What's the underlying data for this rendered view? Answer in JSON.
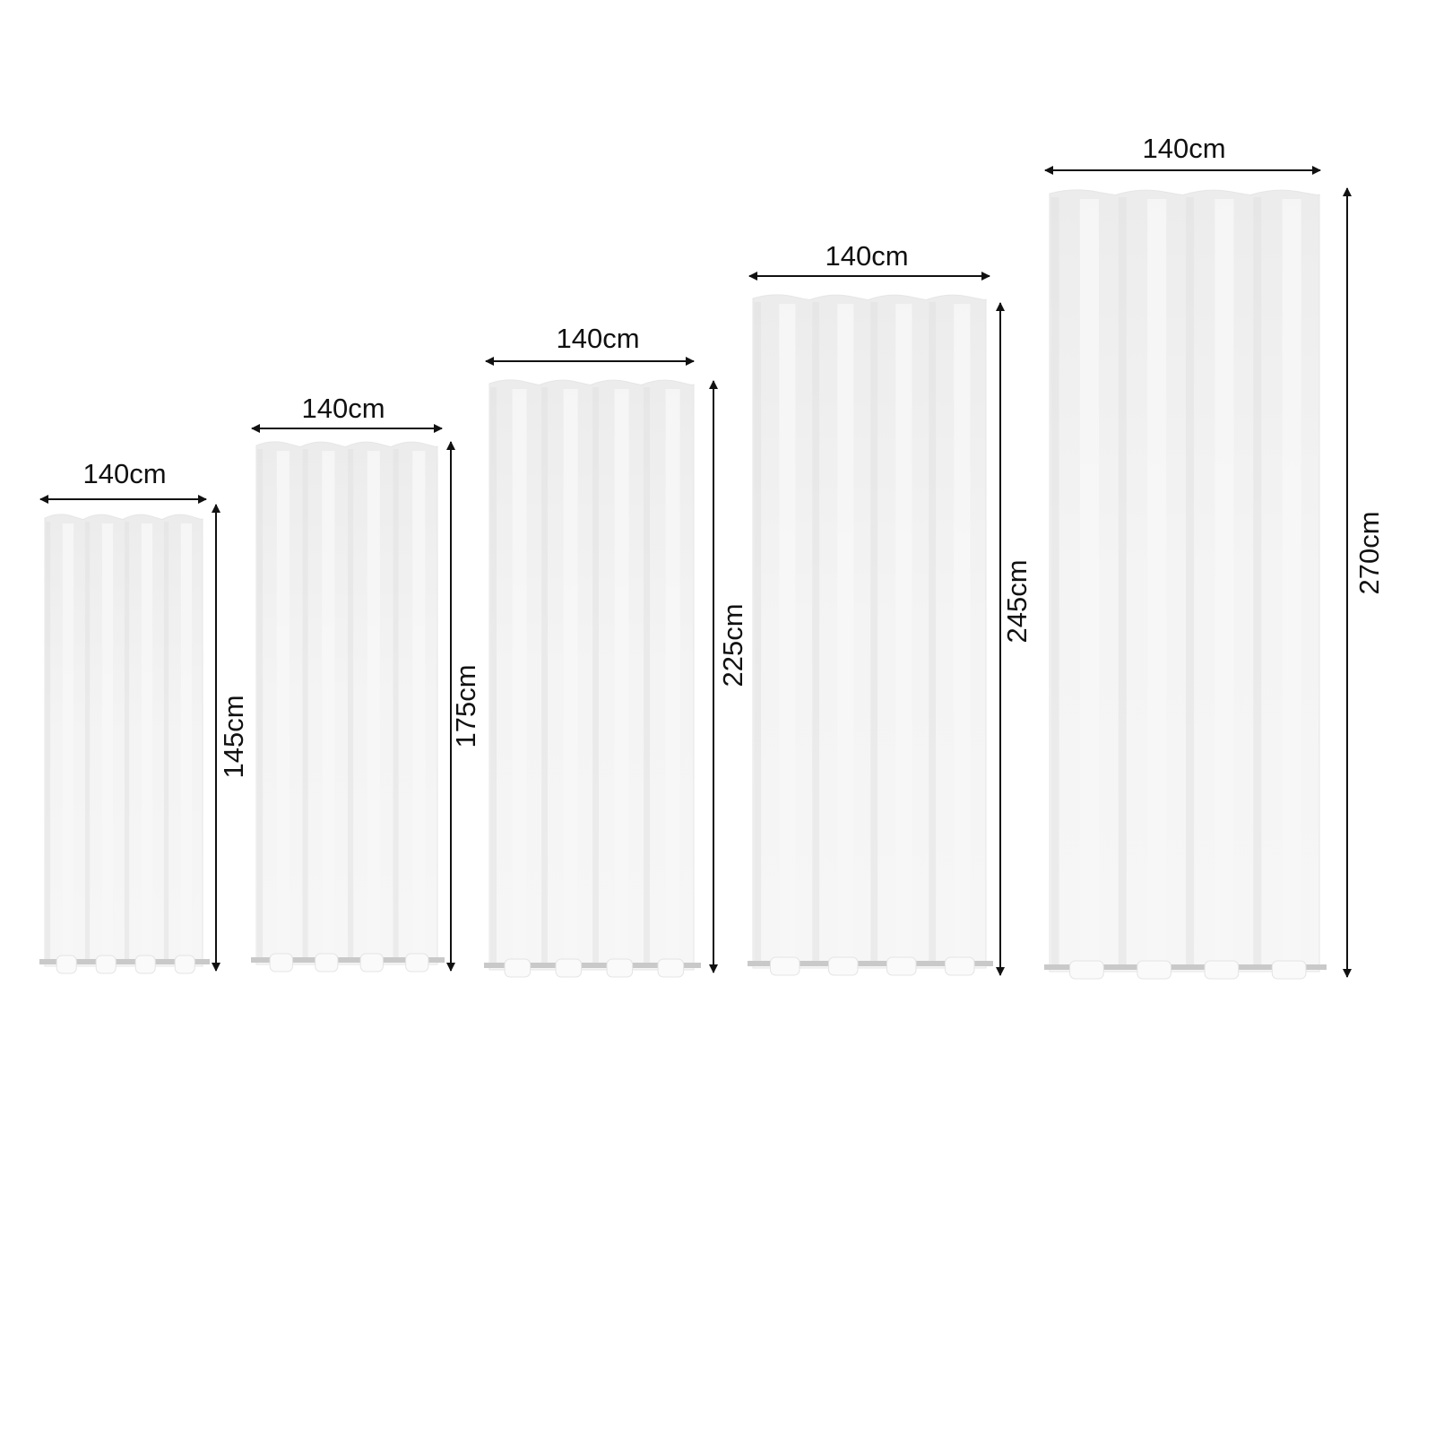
{
  "curtains": [
    {
      "width_label": "140cm",
      "height_label": "145cm",
      "height_cm": 145
    },
    {
      "width_label": "140cm",
      "height_label": "175cm",
      "height_cm": 175
    },
    {
      "width_label": "140cm",
      "height_label": "225cm",
      "height_cm": 225
    },
    {
      "width_label": "140cm",
      "height_label": "245cm",
      "height_cm": 245
    },
    {
      "width_label": "140cm",
      "height_label": "270cm",
      "height_cm": 270
    }
  ],
  "colors": {
    "fabric": "#efefef",
    "fabric_light": "#f7f7f7",
    "fabric_fold": "#e2e2e2",
    "rod": "#c9c9c9",
    "arrow": "#111111"
  }
}
